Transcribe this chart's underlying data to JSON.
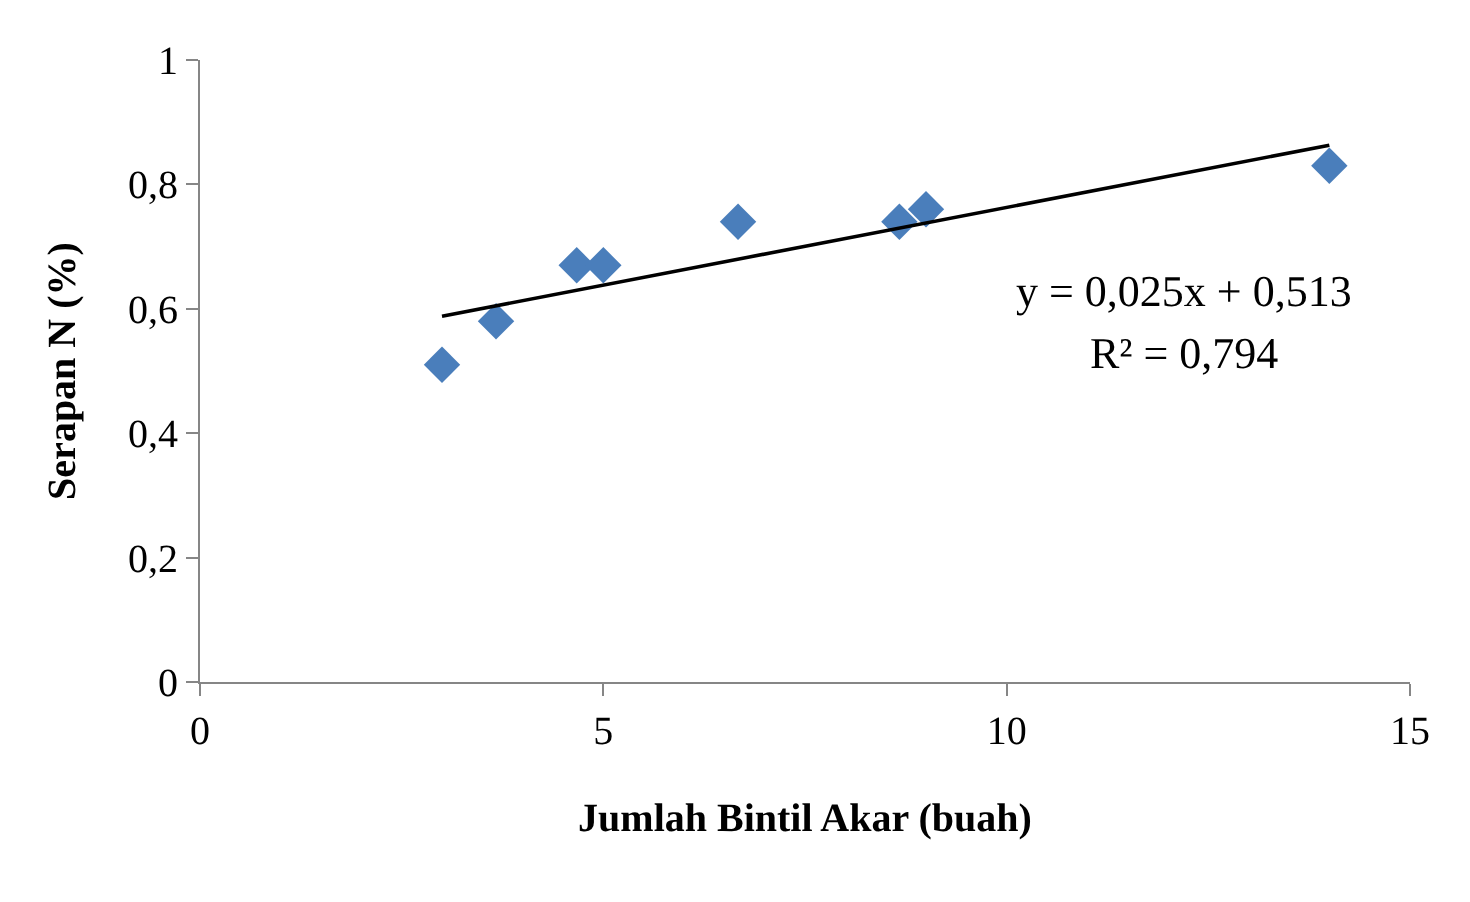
{
  "chart_data": {
    "type": "scatter",
    "xlabel": "Jumlah Bintil Akar (buah)",
    "ylabel": "Serapan N (%)",
    "x": [
      3,
      3.67,
      4.67,
      5,
      6.67,
      8.67,
      9,
      14
    ],
    "series": [
      {
        "color": "#4a7ebb",
        "marker": "diamond",
        "values": [
          0.51,
          0.58,
          0.67,
          0.67,
          0.74,
          0.74,
          0.76,
          0.83
        ]
      },
      {
        "type": "line",
        "color": "#000000",
        "marker": "none",
        "x": [
          3,
          14
        ],
        "values": [
          0.588,
          0.863
        ]
      }
    ],
    "annotations": [
      "y = 0,025x + 0,513",
      "R² = 0,794"
    ],
    "xlim": [
      0,
      15
    ],
    "xticks": [
      0,
      5,
      10,
      15
    ],
    "ylim": [
      0,
      1
    ],
    "yticks": [
      0,
      {
        "value": 0.2,
        "label": "0,2"
      },
      {
        "value": 0.4,
        "label": "0,4"
      },
      {
        "value": 0.6,
        "label": "0,6"
      },
      {
        "value": 0.8,
        "label": "0,8"
      },
      1
    ],
    "grid": false,
    "legend": false
  }
}
